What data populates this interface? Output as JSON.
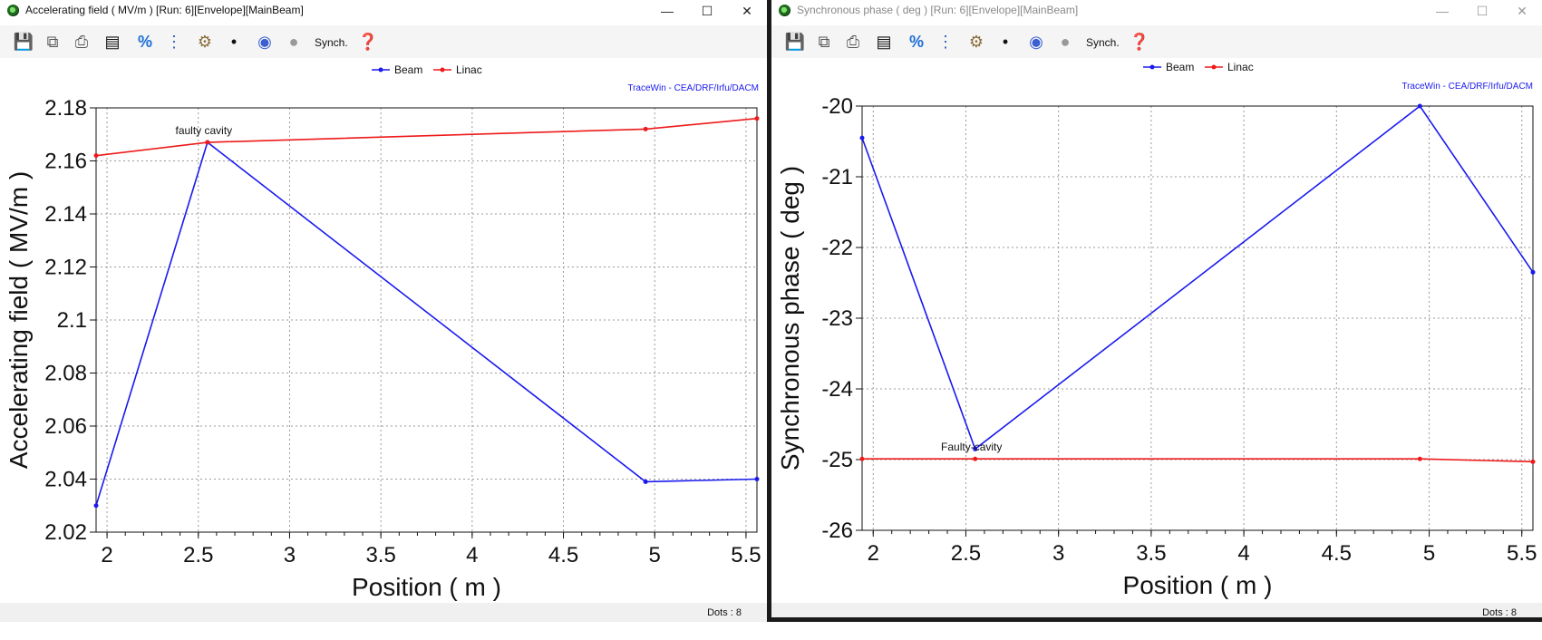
{
  "windows": [
    {
      "title": "Accelerating field ( MV/m ) [Run: 6][Envelope][MainBeam]",
      "synch_label": "Synch.",
      "status": "Dots : 8",
      "credit": "TraceWin - CEA/DRF/Irfu/DACM",
      "icons": [
        "save-icon",
        "copy-icon",
        "print-icon",
        "list-icon",
        "percent-icon",
        "ruler-icon",
        "settings-icon",
        "probe-icon",
        "color-map-icon",
        "circle-icon",
        "help-icon"
      ],
      "chart_data": {
        "type": "line",
        "xlabel": "Position ( m )",
        "ylabel": "Accelerating field ( MV/m )",
        "xlim": [
          1.94,
          5.56
        ],
        "ylim": [
          2.02,
          2.18
        ],
        "xticks": [
          2,
          2.5,
          3,
          3.5,
          4,
          4.5,
          5,
          5.5
        ],
        "xtick_labels": [
          "2",
          "2.5",
          "3",
          "3.5",
          "4",
          "4.5",
          "5",
          "5.5"
        ],
        "yticks": [
          2.02,
          2.04,
          2.06,
          2.08,
          2.1,
          2.12,
          2.14,
          2.16,
          2.18
        ],
        "ytick_labels": [
          "2.02",
          "2.04",
          "2.06",
          "2.08",
          "2.1",
          "2.12",
          "2.14",
          "2.16",
          "2.18"
        ],
        "grid": true,
        "legend": "top-center",
        "series": [
          {
            "name": "Beam",
            "color": "#1a1aee",
            "x": [
              1.94,
              2.55,
              4.95,
              5.56
            ],
            "y": [
              2.03,
              2.167,
              2.039,
              2.04
            ]
          },
          {
            "name": "Linac",
            "color": "#ee1a1a",
            "x": [
              1.94,
              2.55,
              4.95,
              5.56
            ],
            "y": [
              2.162,
              2.167,
              2.172,
              2.176
            ]
          }
        ],
        "annotations": [
          {
            "text": "faulty cavity",
            "x": 2.55,
            "y": 2.167
          }
        ]
      }
    },
    {
      "title": "Synchronous phase ( deg ) [Run: 6][Envelope][MainBeam]",
      "synch_label": "Synch.",
      "status": "Dots : 8",
      "credit": "TraceWin - CEA/DRF/Irfu/DACM",
      "icons": [
        "save-icon",
        "copy-icon",
        "print-icon",
        "list-icon",
        "percent-icon",
        "ruler-icon",
        "settings-icon",
        "probe-icon",
        "color-map-icon",
        "circle-icon",
        "help-icon"
      ],
      "chart_data": {
        "type": "line",
        "xlabel": "Position ( m )",
        "ylabel": "Synchronous phase ( deg )",
        "xlim": [
          1.94,
          5.56
        ],
        "ylim": [
          -26,
          -20
        ],
        "xticks": [
          2,
          2.5,
          3,
          3.5,
          4,
          4.5,
          5,
          5.5
        ],
        "xtick_labels": [
          "2",
          "2.5",
          "3",
          "3.5",
          "4",
          "4.5",
          "5",
          "5.5"
        ],
        "yticks": [
          -26,
          -25,
          -24,
          -23,
          -22,
          -21,
          -20
        ],
        "ytick_labels": [
          "-26",
          "-25",
          "-24",
          "-23",
          "-22",
          "-21",
          "-20"
        ],
        "grid": true,
        "legend": "top-center",
        "series": [
          {
            "name": "Beam",
            "color": "#1a1aee",
            "x": [
              1.94,
              2.55,
              4.95,
              5.56
            ],
            "y": [
              -20.45,
              -24.85,
              -20.0,
              -22.35
            ]
          },
          {
            "name": "Linac",
            "color": "#ee1a1a",
            "x": [
              1.94,
              2.55,
              4.95,
              5.56
            ],
            "y": [
              -24.99,
              -24.99,
              -24.99,
              -25.03
            ]
          }
        ],
        "annotations": [
          {
            "text": "Faulty-cavity",
            "x": 2.55,
            "y": -24.99
          }
        ]
      }
    }
  ]
}
